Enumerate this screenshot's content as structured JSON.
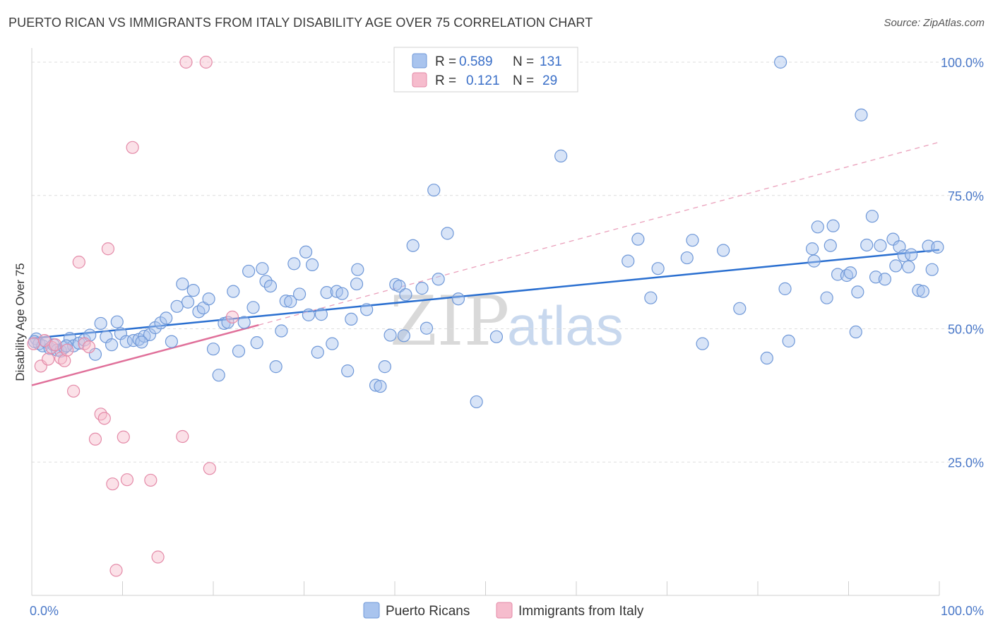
{
  "header": {
    "title": "PUERTO RICAN VS IMMIGRANTS FROM ITALY DISABILITY AGE OVER 75 CORRELATION CHART",
    "source": "Source: ZipAtlas.com"
  },
  "watermark": {
    "zip": "ZIP",
    "atlas": "atlas"
  },
  "legend": {
    "rows": [
      {
        "r_label": "R =",
        "r_value": "0.589",
        "n_label": "N =",
        "n_value": "131",
        "color": "#a9c4ee",
        "stroke": "#6f98d8"
      },
      {
        "r_label": "R =",
        "r_value": "0.121",
        "n_label": "N =",
        "n_value": "29",
        "color": "#f6bccd",
        "stroke": "#e48aa8"
      }
    ]
  },
  "bottom_legend": [
    {
      "label": "Puerto Ricans",
      "color": "#a9c4ee",
      "stroke": "#6f98d8"
    },
    {
      "label": "Immigrants from Italy",
      "color": "#f6bccd",
      "stroke": "#e48aa8"
    }
  ],
  "chart_data": {
    "type": "scatter",
    "xlabel": "",
    "ylabel": "Disability Age Over 75",
    "xlim": [
      0,
      100
    ],
    "ylim": [
      0,
      100
    ],
    "x_tick_labels": [
      "0.0%",
      "100.0%"
    ],
    "y_ticks": [
      25,
      50,
      75,
      100
    ],
    "y_tick_labels": [
      "25.0%",
      "50.0%",
      "75.0%",
      "100.0%"
    ],
    "grid": "horizontal-dashed",
    "series": [
      {
        "name": "Puerto Ricans",
        "color": "#a9c4ee",
        "stroke": "#6f98d8",
        "line_color": "#2a6fd0",
        "trend": {
          "x": [
            0,
            100
          ],
          "y": [
            48.2,
            64.8
          ],
          "dashed_extension": false
        },
        "points": [
          [
            0.5,
            48.1
          ],
          [
            0.8,
            47.2
          ],
          [
            1.2,
            46.8
          ],
          [
            1.6,
            47.5
          ],
          [
            2.0,
            46.3
          ],
          [
            2.4,
            47.0
          ],
          [
            2.8,
            46.0
          ],
          [
            3.2,
            45.8
          ],
          [
            3.6,
            46.5
          ],
          [
            4.2,
            48.2
          ],
          [
            4.6,
            46.8
          ],
          [
            5.2,
            47.3
          ],
          [
            5.8,
            47.9
          ],
          [
            6.4,
            48.8
          ],
          [
            7.0,
            45.2
          ],
          [
            7.6,
            51.0
          ],
          [
            8.2,
            48.5
          ],
          [
            8.8,
            47.0
          ],
          [
            9.4,
            51.3
          ],
          [
            9.8,
            49.1
          ],
          [
            10.4,
            47.6
          ],
          [
            11.2,
            47.8
          ],
          [
            11.8,
            48.0
          ],
          [
            12.4,
            48.6
          ],
          [
            13.0,
            48.9
          ],
          [
            13.6,
            50.2
          ],
          [
            14.2,
            51.1
          ],
          [
            14.8,
            52.0
          ],
          [
            15.4,
            47.6
          ],
          [
            16.0,
            54.2
          ],
          [
            16.6,
            58.4
          ],
          [
            17.2,
            55.0
          ],
          [
            17.8,
            57.2
          ],
          [
            18.4,
            53.2
          ],
          [
            18.9,
            53.9
          ],
          [
            19.5,
            55.6
          ],
          [
            20.0,
            46.2
          ],
          [
            20.6,
            41.3
          ],
          [
            21.2,
            51.0
          ],
          [
            21.6,
            51.2
          ],
          [
            22.2,
            57.0
          ],
          [
            22.8,
            45.8
          ],
          [
            23.4,
            51.2
          ],
          [
            23.9,
            60.8
          ],
          [
            24.4,
            54.0
          ],
          [
            24.8,
            47.4
          ],
          [
            25.4,
            61.3
          ],
          [
            25.8,
            58.9
          ],
          [
            26.3,
            58.0
          ],
          [
            26.9,
            42.9
          ],
          [
            27.5,
            49.6
          ],
          [
            28.0,
            55.2
          ],
          [
            28.5,
            55.1
          ],
          [
            28.9,
            62.2
          ],
          [
            29.5,
            56.5
          ],
          [
            30.2,
            64.4
          ],
          [
            30.5,
            52.6
          ],
          [
            30.9,
            62.0
          ],
          [
            31.5,
            45.6
          ],
          [
            31.9,
            52.7
          ],
          [
            32.5,
            56.8
          ],
          [
            33.1,
            47.2
          ],
          [
            33.6,
            57.0
          ],
          [
            34.2,
            56.6
          ],
          [
            34.8,
            42.1
          ],
          [
            35.2,
            51.8
          ],
          [
            35.8,
            58.4
          ],
          [
            35.9,
            61.1
          ],
          [
            36.9,
            53.6
          ],
          [
            37.9,
            39.4
          ],
          [
            38.4,
            39.2
          ],
          [
            38.9,
            42.9
          ],
          [
            39.5,
            48.8
          ],
          [
            40.1,
            58.3
          ],
          [
            40.5,
            58.0
          ],
          [
            41.0,
            48.7
          ],
          [
            41.2,
            56.4
          ],
          [
            42.0,
            65.6
          ],
          [
            43.0,
            57.6
          ],
          [
            43.5,
            50.1
          ],
          [
            44.3,
            76.0
          ],
          [
            44.8,
            59.3
          ],
          [
            45.8,
            67.9
          ],
          [
            47.0,
            55.6
          ],
          [
            49.0,
            36.3
          ],
          [
            51.2,
            48.5
          ],
          [
            58.3,
            82.4
          ],
          [
            65.7,
            62.7
          ],
          [
            66.8,
            66.8
          ],
          [
            68.2,
            55.8
          ],
          [
            69.0,
            61.3
          ],
          [
            72.2,
            63.3
          ],
          [
            72.8,
            66.6
          ],
          [
            73.9,
            47.2
          ],
          [
            76.2,
            64.7
          ],
          [
            78.0,
            53.8
          ],
          [
            81.0,
            44.5
          ],
          [
            82.5,
            100.0
          ],
          [
            83.0,
            57.5
          ],
          [
            83.4,
            47.7
          ],
          [
            86.0,
            65.0
          ],
          [
            86.2,
            62.7
          ],
          [
            86.6,
            69.1
          ],
          [
            87.6,
            55.8
          ],
          [
            88.0,
            65.6
          ],
          [
            88.3,
            69.3
          ],
          [
            88.8,
            60.2
          ],
          [
            89.8,
            60.0
          ],
          [
            90.2,
            60.5
          ],
          [
            90.8,
            49.4
          ],
          [
            91.0,
            56.9
          ],
          [
            91.4,
            90.1
          ],
          [
            92.0,
            65.7
          ],
          [
            92.6,
            71.1
          ],
          [
            93.0,
            59.7
          ],
          [
            93.5,
            65.6
          ],
          [
            94.0,
            59.3
          ],
          [
            94.9,
            66.8
          ],
          [
            95.2,
            61.8
          ],
          [
            95.6,
            65.4
          ],
          [
            96.1,
            63.7
          ],
          [
            96.6,
            61.6
          ],
          [
            96.9,
            63.9
          ],
          [
            97.7,
            57.2
          ],
          [
            98.2,
            57.0
          ],
          [
            98.8,
            65.5
          ],
          [
            99.2,
            61.1
          ],
          [
            99.8,
            65.3
          ],
          [
            0.3,
            47.6
          ],
          [
            3.8,
            46.8
          ],
          [
            12.1,
            47.5
          ]
        ]
      },
      {
        "name": "Immigrants from Italy",
        "color": "#f6bccd",
        "stroke": "#e48aa8",
        "line_color": "#e0709a",
        "trend": {
          "x": [
            0,
            25
          ],
          "y": [
            39.4,
            50.7
          ],
          "dashed_extension": true,
          "extension_to": [
            100,
            85.0
          ]
        },
        "points": [
          [
            0.2,
            47.2
          ],
          [
            1.0,
            43.0
          ],
          [
            1.8,
            44.3
          ],
          [
            2.2,
            46.5
          ],
          [
            2.6,
            47.0
          ],
          [
            3.2,
            44.5
          ],
          [
            3.6,
            44.0
          ],
          [
            4.6,
            38.3
          ],
          [
            5.2,
            62.5
          ],
          [
            5.8,
            47.2
          ],
          [
            6.3,
            46.6
          ],
          [
            7.0,
            29.3
          ],
          [
            7.6,
            34.0
          ],
          [
            8.0,
            33.2
          ],
          [
            8.4,
            65.0
          ],
          [
            8.9,
            20.9
          ],
          [
            9.3,
            4.7
          ],
          [
            10.1,
            29.7
          ],
          [
            10.5,
            21.7
          ],
          [
            11.1,
            84.0
          ],
          [
            13.1,
            21.6
          ],
          [
            13.9,
            7.2
          ],
          [
            16.6,
            29.8
          ],
          [
            17.0,
            100.0
          ],
          [
            19.2,
            100.0
          ],
          [
            19.6,
            23.8
          ],
          [
            22.1,
            52.2
          ],
          [
            3.9,
            46.0
          ],
          [
            1.4,
            47.8
          ]
        ]
      }
    ]
  }
}
